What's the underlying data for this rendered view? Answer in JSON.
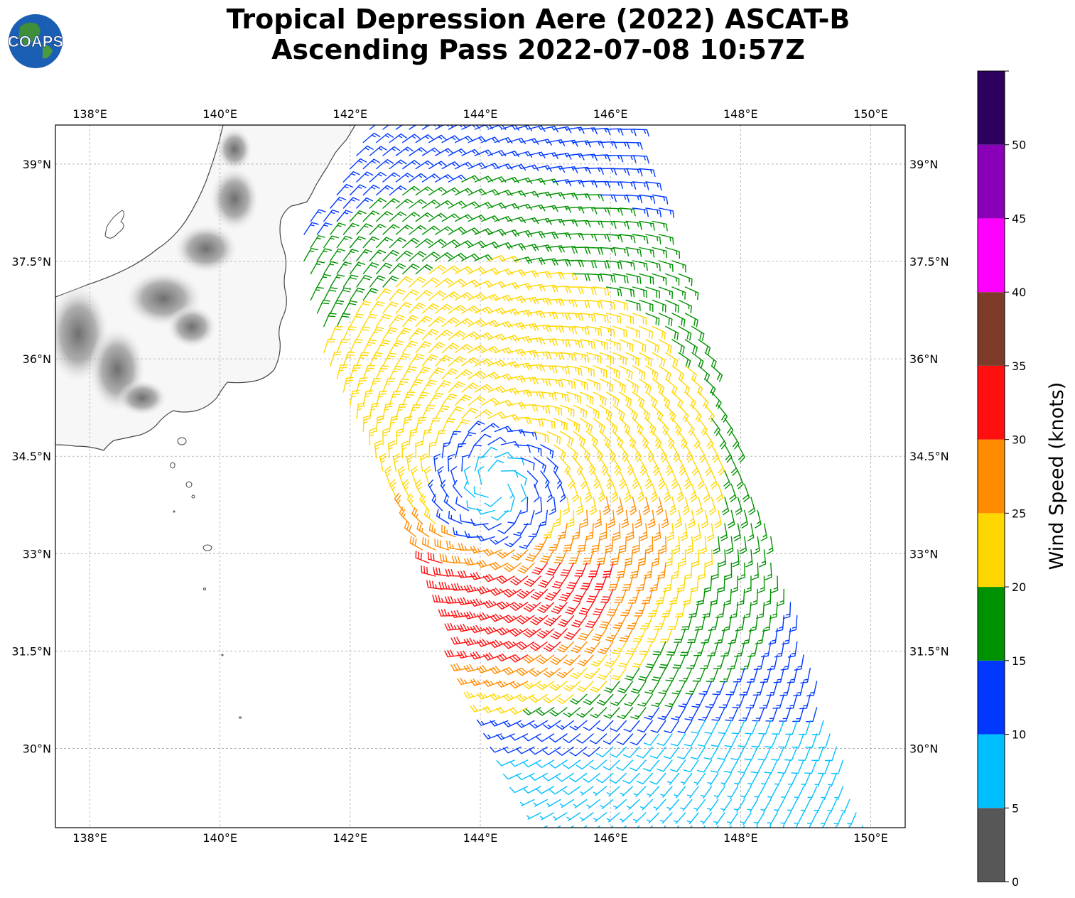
{
  "header": {
    "logo_text": "COAPS",
    "title_line1": "Tropical Depression Aere (2022) ASCAT-B",
    "title_line2": "Ascending Pass 2022-07-08 10:57Z"
  },
  "map": {
    "lon_ticks": [
      "138°E",
      "140°E",
      "142°E",
      "144°E",
      "146°E",
      "148°E",
      "150°E"
    ],
    "lat_ticks": [
      "39°N",
      "37.5°N",
      "36°N",
      "34.5°N",
      "33°N",
      "31.5°N",
      "30°N"
    ],
    "lon_values": [
      138,
      140,
      142,
      144,
      146,
      148,
      150
    ],
    "lat_values": [
      39,
      37.5,
      36,
      34.5,
      33,
      31.5,
      30
    ],
    "extent": {
      "lon": [
        137.47,
        150.53
      ],
      "lat": [
        28.78,
        39.6
      ]
    },
    "storm_center": {
      "lon": 144.25,
      "lat": 34.05
    }
  },
  "colorbar": {
    "label": "Wind Speed (knots)",
    "ticks": [
      "0",
      "5",
      "10",
      "15",
      "20",
      "25",
      "30",
      "35",
      "40",
      "45",
      "50"
    ],
    "bins": [
      {
        "min": 0,
        "max": 5,
        "color": "#575757"
      },
      {
        "min": 5,
        "max": 10,
        "color": "#00bfff"
      },
      {
        "min": 10,
        "max": 15,
        "color": "#0038ff"
      },
      {
        "min": 15,
        "max": 20,
        "color": "#009100"
      },
      {
        "min": 20,
        "max": 25,
        "color": "#ffd700"
      },
      {
        "min": 25,
        "max": 30,
        "color": "#ff8c00"
      },
      {
        "min": 30,
        "max": 35,
        "color": "#ff0f0f"
      },
      {
        "min": 35,
        "max": 40,
        "color": "#7f3b2a"
      },
      {
        "min": 40,
        "max": 45,
        "color": "#ff00ff"
      },
      {
        "min": 45,
        "max": 50,
        "color": "#8a00b8"
      },
      {
        "min": 50,
        "max": 55,
        "color": "#2e005e"
      }
    ]
  }
}
